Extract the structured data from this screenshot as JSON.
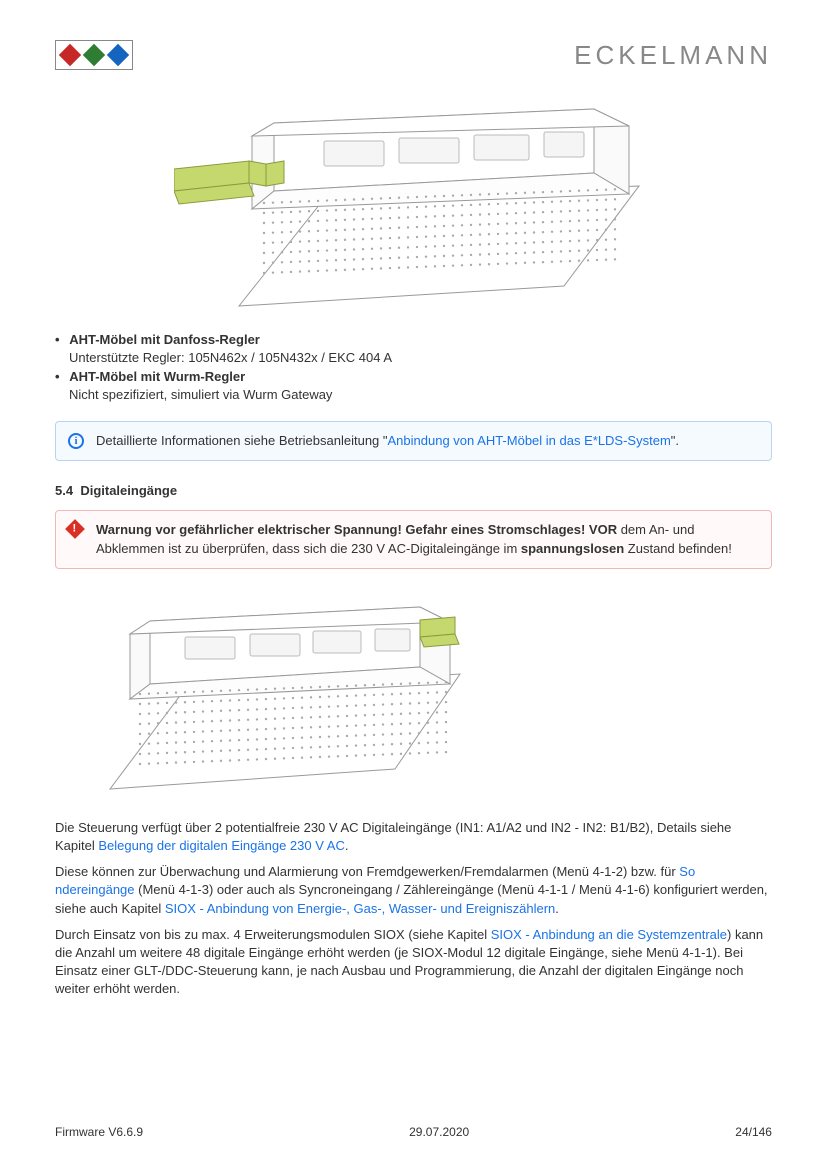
{
  "brand": "ECKELMANN",
  "logo_colors": [
    "#c62828",
    "#2e7d32",
    "#1565c0"
  ],
  "bullets": [
    {
      "title": "AHT-Möbel mit Danfoss-Regler",
      "sub": "Unterstützte Regler: 105N462x / 105N432x / EKC 404 A"
    },
    {
      "title": "AHT-Möbel mit Wurm-Regler",
      "sub": "Nicht spezifiziert, simuliert via Wurm Gateway"
    }
  ],
  "info_box": {
    "prefix": "Detaillierte Informationen siehe Betriebsanleitung \"",
    "link": "Anbindung von AHT-Möbel in das E*LDS-System",
    "suffix": "\"."
  },
  "section": {
    "num": "5.4",
    "title": "Digitaleingänge"
  },
  "warn_box": {
    "bold1": "Warnung vor gefährlicher elektrischer Spannung! Gefahr eines Stromschlages! VOR",
    "text1": " dem An- und Abklemmen ist zu überprüfen, dass sich die 230 V AC-Digitaleingänge im ",
    "bold2": "spannungslosen",
    "text2": " Zustand befinden!"
  },
  "p1": {
    "t1": "Die Steuerung verfügt über 2 potentialfreie 230 V AC Digitaleingänge (IN1: A1/A2 und IN2 - IN2: B1/B2), Details siehe Kapitel ",
    "link1": "Belegung der digitalen Eingänge 230 V AC",
    "t2": "."
  },
  "p2": {
    "t1": "Diese können zur Überwachung und Alarmierung von Fremdgewerken/Fremdalarmen (Menü 4-1-2) bzw. für ",
    "link1": "So\nndereingänge",
    "t2": " (Menü 4-1-3) oder auch als Syncroneingang / Zählereingänge (Menü 4-1-1 / Menü 4-1-6) konfiguriert werden, siehe auch Kapitel ",
    "link2": "SIOX - Anbindung von Energie-, Gas-, Wasser- und Ereigniszählern",
    "t3": "."
  },
  "p3": {
    "t1": "Durch Einsatz von bis zu max. 4 Erweiterungsmodulen SIOX (siehe Kapitel ",
    "link1": "SIOX - Anbindung an die Systemzentrale",
    "t2": ") kann die Anzahl um weitere 48 digitale Eingänge erhöht werden (je SIOX-Modul 12 digitale Eingänge, siehe Menü 4-1-1). Bei Einsatz einer GLT-/DDC-Steuerung kann, je nach Ausbau und Programmierung, die Anzahl der digitalen Eingänge noch weiter erhöht werden."
  },
  "footer": {
    "left": "Firmware V6.6.9",
    "center": "29.07.2020",
    "right": "24/146"
  },
  "device_style": {
    "outline": "#999",
    "dots": "#bbb",
    "connector": "#c5d86d",
    "connector_stroke": "#8a9a3d"
  }
}
